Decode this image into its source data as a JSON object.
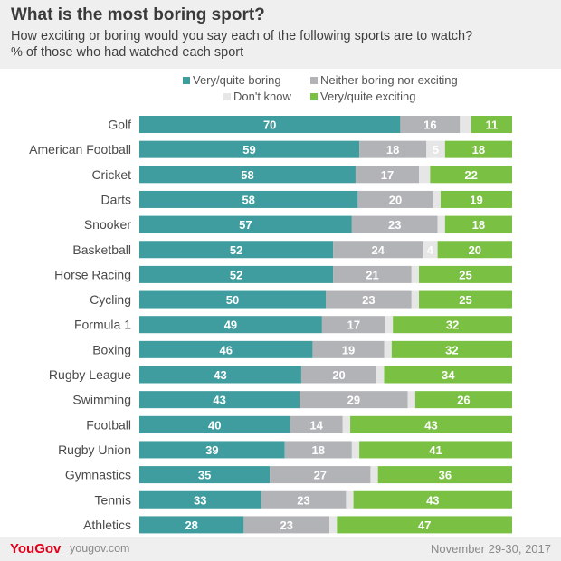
{
  "header": {
    "title": "What is the most boring sport?",
    "subtitle_line1": "How exciting or boring would you say each of the following sports are to watch?",
    "subtitle_line2": "% of those who had watched each sport"
  },
  "footer": {
    "brand": "YouGov",
    "site": "yougov.com",
    "date": "November 29-30, 2017"
  },
  "colors": {
    "boring": "#3f9c9f",
    "neither": "#b2b3b6",
    "dont_know": "#e6e6e6",
    "exciting": "#7ac143"
  },
  "chart_data": {
    "type": "bar",
    "orientation": "horizontal",
    "stacked": true,
    "legend_position": "top",
    "categories": [
      "Golf",
      "American Football",
      "Cricket",
      "Darts",
      "Snooker",
      "Basketball",
      "Horse Racing",
      "Cycling",
      "Formula 1",
      "Boxing",
      "Rugby League",
      "Swimming",
      "Football",
      "Rugby Union",
      "Gymnastics",
      "Tennis",
      "Athletics"
    ],
    "series": [
      {
        "name": "Very/quite boring",
        "color": "#3f9c9f",
        "label_color": "#ffffff",
        "values": [
          70,
          59,
          58,
          58,
          57,
          52,
          52,
          50,
          49,
          46,
          43,
          43,
          40,
          39,
          35,
          33,
          28
        ]
      },
      {
        "name": "Neither boring nor exciting",
        "color": "#b2b3b6",
        "label_color": "#ffffff",
        "values": [
          16,
          18,
          17,
          20,
          23,
          24,
          21,
          23,
          17,
          19,
          20,
          29,
          14,
          18,
          27,
          23,
          23
        ]
      },
      {
        "name": "Don't know",
        "color": "#e6e6e6",
        "label_color": "#ffffff",
        "values": [
          3,
          5,
          3,
          2,
          2,
          4,
          2,
          2,
          2,
          2,
          2,
          2,
          2,
          2,
          2,
          2,
          2
        ],
        "labels": [
          "",
          "5",
          "",
          "",
          "",
          "4",
          "",
          "",
          "",
          "",
          "",
          "",
          "",
          "",
          "",
          "",
          ""
        ]
      },
      {
        "name": "Very/quite exciting",
        "color": "#7ac143",
        "label_color": "#ffffff",
        "values": [
          11,
          18,
          22,
          19,
          18,
          20,
          25,
          25,
          32,
          32,
          34,
          26,
          43,
          41,
          36,
          43,
          47
        ]
      }
    ],
    "xlim": [
      0,
      100
    ],
    "grid": false
  }
}
